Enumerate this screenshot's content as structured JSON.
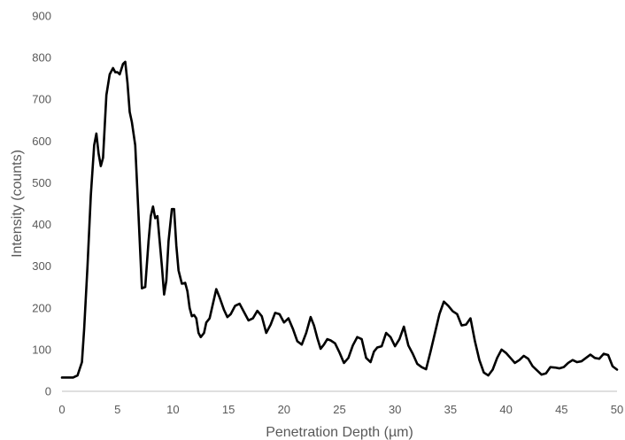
{
  "chart_data": {
    "type": "line",
    "title": "",
    "xlabel": "Penetration Depth (µm)",
    "ylabel": "Intensity (counts)",
    "xlim": [
      0,
      50
    ],
    "ylim": [
      0,
      900
    ],
    "xticks": [
      0,
      5,
      10,
      15,
      20,
      25,
      30,
      35,
      40,
      45,
      50
    ],
    "yticks": [
      0,
      100,
      200,
      300,
      400,
      500,
      600,
      700,
      800,
      900
    ],
    "grid": false,
    "legend": "none",
    "line_color": "#000000",
    "axis_color": "#bfbfbf",
    "text_color": "#595959",
    "series": [
      {
        "x": [
          0,
          0.5,
          1,
          1.4,
          1.8,
          2.0,
          2.3,
          2.6,
          2.9,
          3.1,
          3.3,
          3.5,
          3.7,
          4.0,
          4.3,
          4.6,
          4.8,
          5.0,
          5.2,
          5.5,
          5.7,
          5.9,
          6.1,
          6.3,
          6.6,
          6.9,
          7.2,
          7.5,
          7.8,
          8.0,
          8.2,
          8.4,
          8.6,
          8.8,
          9.0,
          9.2,
          9.4,
          9.6,
          9.9,
          10.1,
          10.3,
          10.5,
          10.8,
          11.1,
          11.3,
          11.5,
          11.7,
          11.9,
          12.1,
          12.3,
          12.5,
          12.8,
          13.0,
          13.3,
          13.6,
          13.9,
          14.2,
          14.6,
          14.9,
          15.2,
          15.6,
          16.0,
          16.4,
          16.8,
          17.2,
          17.6,
          18.0,
          18.4,
          18.8,
          19.2,
          19.6,
          20.0,
          20.4,
          20.8,
          21.2,
          21.6,
          22.0,
          22.4,
          22.7,
          23.0,
          23.3,
          23.6,
          23.9,
          24.2,
          24.6,
          25.0,
          25.4,
          25.8,
          26.2,
          26.6,
          27.0,
          27.4,
          27.8,
          28.1,
          28.4,
          28.8,
          29.2,
          29.6,
          30.0,
          30.4,
          30.8,
          31.2,
          31.6,
          32.0,
          32.4,
          32.8,
          33.2,
          33.6,
          34.0,
          34.4,
          34.8,
          35.2,
          35.6,
          36.0,
          36.4,
          36.8,
          37.2,
          37.6,
          38.0,
          38.4,
          38.8,
          39.2,
          39.6,
          40.0,
          40.4,
          40.8,
          41.2,
          41.6,
          42.0,
          42.4,
          42.8,
          43.2,
          43.6,
          44.0,
          44.4,
          44.8,
          45.2,
          45.6,
          46.0,
          46.4,
          46.8,
          47.2,
          47.6,
          48.0,
          48.4,
          48.8,
          49.2,
          49.6,
          50.0
        ],
        "values": [
          33,
          33,
          33,
          38,
          70,
          150,
          300,
          470,
          590,
          618,
          570,
          540,
          560,
          710,
          760,
          775,
          765,
          765,
          760,
          785,
          790,
          740,
          670,
          645,
          590,
          420,
          247,
          250,
          360,
          420,
          443,
          415,
          420,
          360,
          300,
          232,
          265,
          360,
          437,
          437,
          350,
          290,
          258,
          260,
          240,
          200,
          180,
          183,
          175,
          140,
          130,
          140,
          165,
          175,
          210,
          245,
          225,
          195,
          178,
          185,
          205,
          210,
          190,
          170,
          175,
          193,
          180,
          140,
          160,
          188,
          185,
          165,
          175,
          150,
          120,
          112,
          140,
          178,
          158,
          128,
          102,
          112,
          125,
          122,
          115,
          93,
          68,
          80,
          110,
          130,
          125,
          80,
          70,
          95,
          105,
          108,
          140,
          130,
          108,
          125,
          155,
          110,
          90,
          66,
          58,
          53,
          95,
          140,
          185,
          215,
          205,
          192,
          185,
          158,
          160,
          175,
          120,
          75,
          45,
          38,
          52,
          80,
          100,
          92,
          80,
          68,
          75,
          85,
          78,
          60,
          50,
          40,
          43,
          58,
          57,
          55,
          58,
          68,
          75,
          70,
          72,
          80,
          88,
          80,
          78,
          90,
          87,
          60,
          52
        ]
      }
    ]
  }
}
